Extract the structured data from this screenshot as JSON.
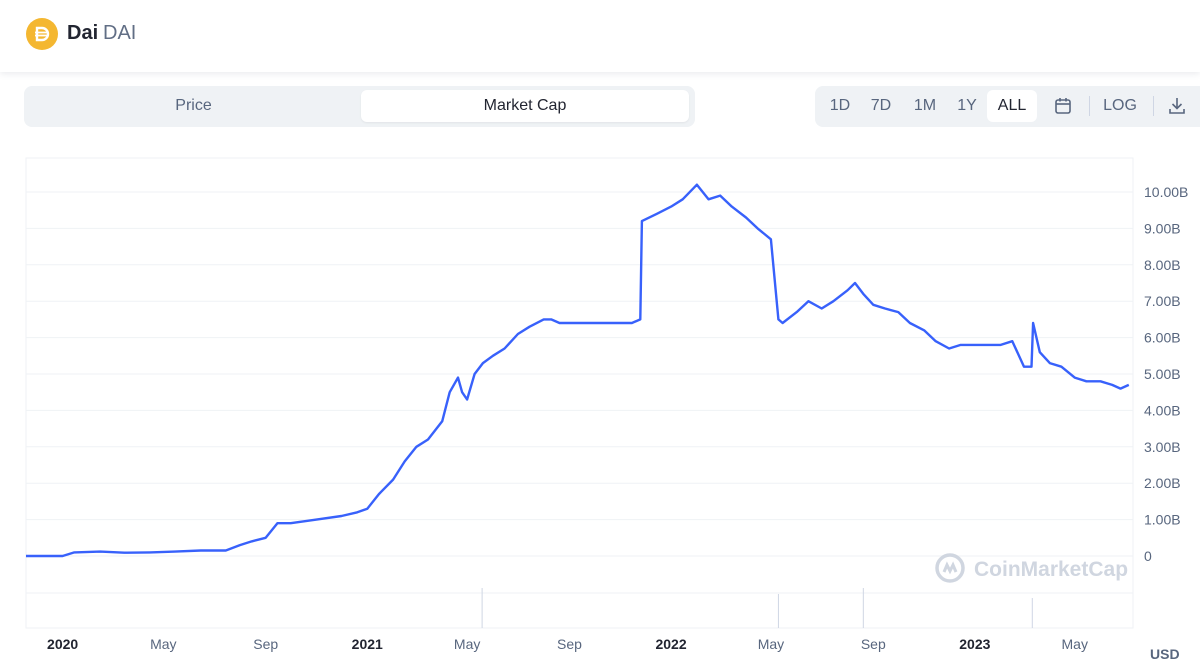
{
  "header": {
    "name": "Dai",
    "symbol": "DAI",
    "logo_color": "#F4B731",
    "logo_icon": "dai-icon"
  },
  "tabs": [
    {
      "label": "Price",
      "active": false
    },
    {
      "label": "Market Cap",
      "active": true
    }
  ],
  "ranges": [
    {
      "label": "1D",
      "active": false
    },
    {
      "label": "7D",
      "active": false
    },
    {
      "label": "1M",
      "active": false
    },
    {
      "label": "1Y",
      "active": false
    },
    {
      "label": "ALL",
      "active": true
    }
  ],
  "toolbar": {
    "log_label": "LOG",
    "calendar_icon": "calendar-icon",
    "download_icon": "download-icon"
  },
  "watermark": "CoinMarketCap",
  "currency": "USD",
  "colors": {
    "line": "#3861FB",
    "accent": "#3861FB",
    "grid": "#eff2f5",
    "volume": "#cfd6e4"
  },
  "chart_data": {
    "type": "line",
    "title": "",
    "xlabel": "",
    "ylabel": "",
    "ylim": [
      0,
      10500000000
    ],
    "yticks": [
      {
        "value": 0,
        "label": "0"
      },
      {
        "value": 1000000000,
        "label": "1.00B"
      },
      {
        "value": 2000000000,
        "label": "2.00B"
      },
      {
        "value": 3000000000,
        "label": "3.00B"
      },
      {
        "value": 4000000000,
        "label": "4.00B"
      },
      {
        "value": 5000000000,
        "label": "5.00B"
      },
      {
        "value": 6000000000,
        "label": "6.00B"
      },
      {
        "value": 7000000000,
        "label": "7.00B"
      },
      {
        "value": 8000000000,
        "label": "8.00B"
      },
      {
        "value": 9000000000,
        "label": "9.00B"
      },
      {
        "value": 10000000000,
        "label": "10.00B"
      }
    ],
    "xlim": [
      "2019-11-18",
      "2023-07-10"
    ],
    "xticks": [
      {
        "date": "2020-01-01",
        "label": "2020",
        "year": true
      },
      {
        "date": "2020-05-01",
        "label": "May",
        "year": false
      },
      {
        "date": "2020-09-01",
        "label": "Sep",
        "year": false
      },
      {
        "date": "2021-01-01",
        "label": "2021",
        "year": true
      },
      {
        "date": "2021-05-01",
        "label": "May",
        "year": false
      },
      {
        "date": "2021-09-01",
        "label": "Sep",
        "year": false
      },
      {
        "date": "2022-01-01",
        "label": "2022",
        "year": true
      },
      {
        "date": "2022-05-01",
        "label": "May",
        "year": false
      },
      {
        "date": "2022-09-01",
        "label": "Sep",
        "year": false
      },
      {
        "date": "2023-01-01",
        "label": "2023",
        "year": true
      },
      {
        "date": "2023-05-01",
        "label": "May",
        "year": false
      }
    ],
    "series": [
      {
        "name": "",
        "x": [
          "2019-11-18",
          "2020-01-01",
          "2020-01-15",
          "2020-02-15",
          "2020-03-15",
          "2020-04-15",
          "2020-05-15",
          "2020-06-15",
          "2020-07-15",
          "2020-08-01",
          "2020-08-15",
          "2020-09-01",
          "2020-09-15",
          "2020-10-01",
          "2020-11-01",
          "2020-12-01",
          "2020-12-20",
          "2021-01-01",
          "2021-01-15",
          "2021-02-01",
          "2021-02-15",
          "2021-03-01",
          "2021-03-15",
          "2021-04-01",
          "2021-04-10",
          "2021-04-20",
          "2021-04-25",
          "2021-05-01",
          "2021-05-10",
          "2021-05-20",
          "2021-06-01",
          "2021-06-15",
          "2021-07-01",
          "2021-07-15",
          "2021-08-01",
          "2021-08-10",
          "2021-08-20",
          "2021-09-01",
          "2021-10-01",
          "2021-11-01",
          "2021-11-15",
          "2021-11-25",
          "2021-11-27",
          "2021-12-15",
          "2022-01-01",
          "2022-01-15",
          "2022-02-01",
          "2022-02-15",
          "2022-03-01",
          "2022-03-15",
          "2022-04-01",
          "2022-04-15",
          "2022-05-01",
          "2022-05-10",
          "2022-05-15",
          "2022-06-01",
          "2022-06-15",
          "2022-07-01",
          "2022-07-15",
          "2022-08-01",
          "2022-08-10",
          "2022-08-20",
          "2022-09-01",
          "2022-09-15",
          "2022-10-01",
          "2022-10-15",
          "2022-11-01",
          "2022-11-15",
          "2022-12-01",
          "2022-12-15",
          "2023-01-01",
          "2023-01-15",
          "2023-02-01",
          "2023-02-15",
          "2023-03-01",
          "2023-03-10",
          "2023-03-12",
          "2023-03-20",
          "2023-04-01",
          "2023-04-15",
          "2023-05-01",
          "2023-05-15",
          "2023-06-01",
          "2023-06-15",
          "2023-06-25",
          "2023-07-05"
        ],
        "y": [
          0,
          0,
          100000000,
          120000000,
          90000000,
          100000000,
          120000000,
          150000000,
          150000000,
          300000000,
          400000000,
          500000000,
          900000000,
          900000000,
          1000000000,
          1100000000,
          1200000000,
          1300000000,
          1700000000,
          2100000000,
          2600000000,
          3000000000,
          3200000000,
          3700000000,
          4500000000,
          4900000000,
          4500000000,
          4300000000,
          5000000000,
          5300000000,
          5500000000,
          5700000000,
          6100000000,
          6300000000,
          6500000000,
          6500000000,
          6400000000,
          6400000000,
          6400000000,
          6400000000,
          6400000000,
          6500000000,
          9200000000,
          9400000000,
          9600000000,
          9800000000,
          10200000000,
          9800000000,
          9900000000,
          9600000000,
          9300000000,
          9000000000,
          8700000000,
          6500000000,
          6400000000,
          6700000000,
          7000000000,
          6800000000,
          7000000000,
          7300000000,
          7500000000,
          7200000000,
          6900000000,
          6800000000,
          6700000000,
          6400000000,
          6200000000,
          5900000000,
          5700000000,
          5800000000,
          5800000000,
          5800000000,
          5800000000,
          5900000000,
          5200000000,
          5200000000,
          6400000000,
          5600000000,
          5300000000,
          5200000000,
          4900000000,
          4800000000,
          4800000000,
          4700000000,
          4600000000,
          4700000000
        ]
      }
    ],
    "volume": {
      "x": [
        "2021-05-19",
        "2022-05-10",
        "2022-08-20",
        "2023-03-11"
      ],
      "values": [
        1.0,
        0.85,
        1.0,
        0.75
      ]
    },
    "grid": true,
    "y_axis_position": "right",
    "scale": "linear"
  }
}
